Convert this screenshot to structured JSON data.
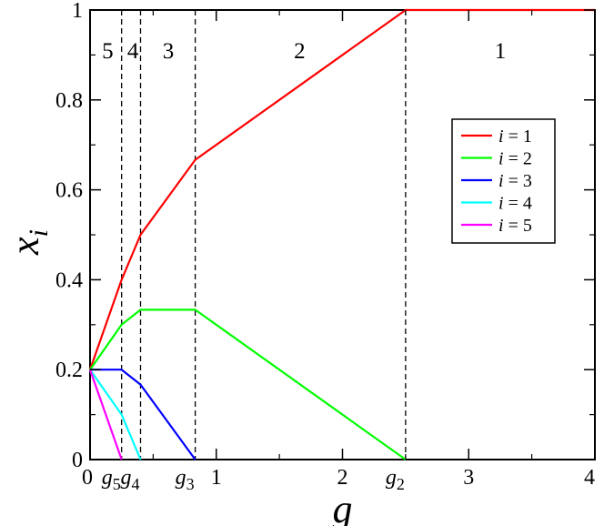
{
  "chart_data": {
    "type": "line",
    "xlabel": "g",
    "ylabel": "x",
    "ylabel_sub": "i",
    "xlim": [
      0,
      4
    ],
    "ylim": [
      0,
      1
    ],
    "x_ticks": [
      {
        "value": 0,
        "label": "0"
      },
      {
        "value": 1,
        "label": "1"
      },
      {
        "value": 2,
        "label": "2"
      },
      {
        "value": 3,
        "label": "3"
      },
      {
        "value": 4,
        "label": "4"
      }
    ],
    "y_ticks": [
      {
        "value": 0,
        "label": "0"
      },
      {
        "value": 0.2,
        "label": "0.2"
      },
      {
        "value": 0.4,
        "label": "0.4"
      },
      {
        "value": 0.6,
        "label": "0.6"
      },
      {
        "value": 0.8,
        "label": "0.8"
      },
      {
        "value": 1,
        "label": "1"
      }
    ],
    "thresholds": [
      {
        "name": "g",
        "sub": "5",
        "x": 0.25
      },
      {
        "name": "g",
        "sub": "4",
        "x": 0.4
      },
      {
        "name": "g",
        "sub": "3",
        "x": 0.8333
      },
      {
        "name": "g",
        "sub": "2",
        "x": 2.5
      }
    ],
    "regions": [
      {
        "label": "5",
        "x": 0.14
      },
      {
        "label": "4",
        "x": 0.34
      },
      {
        "label": "3",
        "x": 0.62
      },
      {
        "label": "2",
        "x": 1.66
      },
      {
        "label": "1",
        "x": 3.25
      }
    ],
    "series": [
      {
        "name": "i = 1",
        "var": "i",
        "eq": " = 1",
        "color": "#ff0000",
        "points": [
          [
            0,
            0.2
          ],
          [
            0.25,
            0.4
          ],
          [
            0.4,
            0.5
          ],
          [
            0.8333,
            0.6667
          ],
          [
            2.5,
            1
          ],
          [
            4,
            1
          ]
        ]
      },
      {
        "name": "i = 2",
        "var": "i",
        "eq": " = 2",
        "color": "#00ff00",
        "points": [
          [
            0,
            0.2
          ],
          [
            0.25,
            0.3
          ],
          [
            0.4,
            0.3333
          ],
          [
            0.8333,
            0.3333
          ],
          [
            2.5,
            0
          ]
        ]
      },
      {
        "name": "i = 3",
        "var": "i",
        "eq": " = 3",
        "color": "#0000ff",
        "points": [
          [
            0,
            0.2
          ],
          [
            0.25,
            0.2
          ],
          [
            0.4,
            0.1667
          ],
          [
            0.8333,
            0
          ]
        ]
      },
      {
        "name": "i = 4",
        "var": "i",
        "eq": " = 4",
        "color": "#00ffff",
        "points": [
          [
            0,
            0.2
          ],
          [
            0.25,
            0.1
          ],
          [
            0.4,
            0
          ]
        ]
      },
      {
        "name": "i = 5",
        "var": "i",
        "eq": " = 5",
        "color": "#ff00ff",
        "points": [
          [
            0,
            0.2
          ],
          [
            0.25,
            0
          ]
        ]
      }
    ],
    "grid": false,
    "legend_position": "right"
  }
}
